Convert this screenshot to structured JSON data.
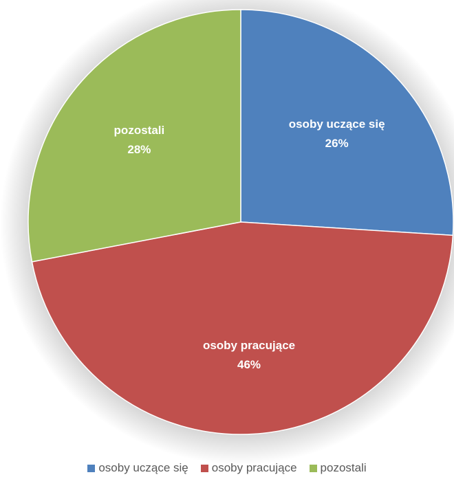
{
  "chart_data": {
    "type": "pie",
    "title": "",
    "slices": [
      {
        "label": "osoby uczące się",
        "value": 26,
        "value_label": "26%",
        "color": "#4f81bd"
      },
      {
        "label": "osoby pracujące",
        "value": 46,
        "value_label": "46%",
        "color": "#c0504d"
      },
      {
        "label": "pozostali",
        "value": 28,
        "value_label": "28%",
        "color": "#9bbb59"
      }
    ],
    "start_angle_deg": 0,
    "direction": "clockwise",
    "legend": "bottom",
    "data_labels": "inside"
  }
}
